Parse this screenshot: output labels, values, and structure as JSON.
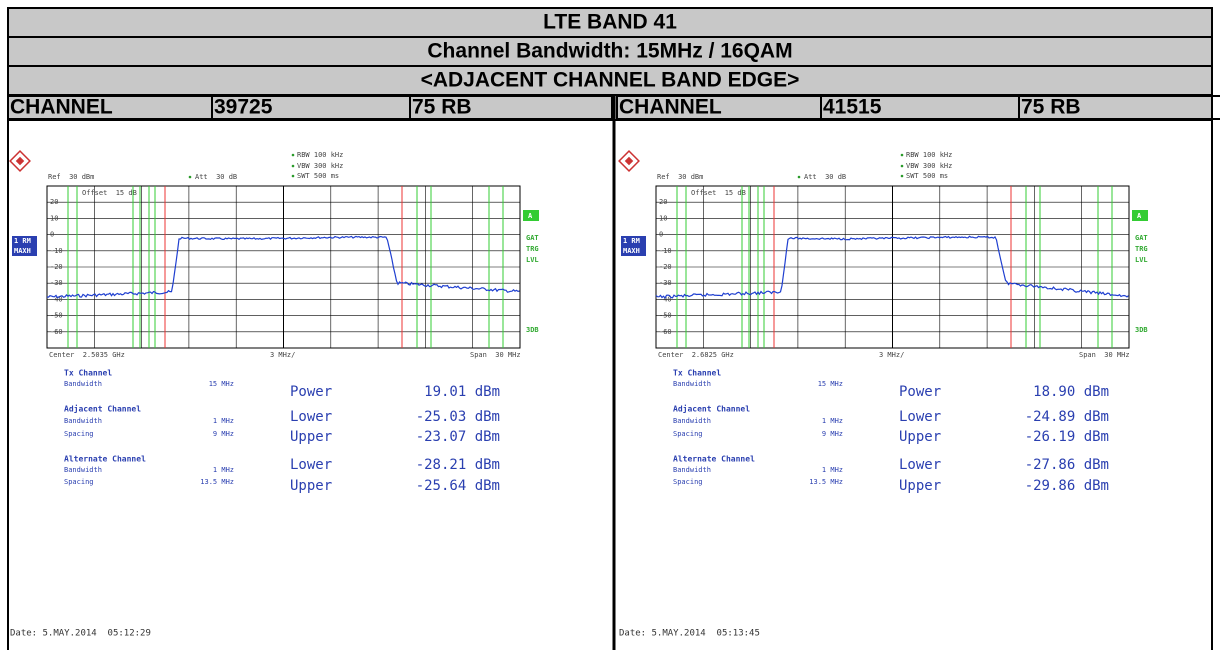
{
  "header": {
    "title": "LTE BAND 41",
    "subtitle": "Channel Bandwidth: 15MHz / 16QAM",
    "section": "<ADJACENT CHANNEL BAND EDGE>"
  },
  "panels": [
    {
      "channel_label": "CHANNEL",
      "channel": "39725",
      "rb": "75 RB",
      "analyzer": {
        "rbw": "RBW 100 kHz",
        "vbw": "VBW 300 kHz",
        "swt": "SWT 500 ms",
        "ref": "Ref  30 dBm",
        "att": "Att  30 dB",
        "offset": "Offset  15 dB",
        "trace_labels": [
          "1 RM",
          "MAXH"
        ],
        "yticks": [
          "20",
          "10",
          "0",
          "-10",
          "-20",
          "-30",
          "-40",
          "-50",
          "-60"
        ],
        "side_labels": [
          "A",
          "GAT",
          "TRG",
          "LVL",
          "3DB"
        ],
        "center": "Center  2.5035 GHz",
        "div": "3 MHz/",
        "span": "Span  30 MHz"
      },
      "results": {
        "tx_title": "Tx Channel",
        "tx_bw_label": "Bandwidth",
        "tx_bw": "15 MHz",
        "power_label": "Power",
        "power": "19.01 dBm",
        "adj_title": "Adjacent Channel",
        "adj_bw_label": "Bandwidth",
        "adj_bw": "1 MHz",
        "adj_sp_label": "Spacing",
        "adj_sp": "9 MHz",
        "adj_lower_label": "Lower",
        "adj_lower": "-25.03 dBm",
        "adj_upper_label": "Upper",
        "adj_upper": "-23.07 dBm",
        "alt_title": "Alternate Channel",
        "alt_bw_label": "Bandwidth",
        "alt_bw": "1 MHz",
        "alt_sp_label": "Spacing",
        "alt_sp": "13.5 MHz",
        "alt_lower_label": "Lower",
        "alt_lower": "-28.21 dBm",
        "alt_upper_label": "Upper",
        "alt_upper": "-25.64 dBm"
      },
      "date": "Date: 5.MAY.2014  05:12:29"
    },
    {
      "channel_label": "CHANNEL",
      "channel": "41515",
      "rb": "75 RB",
      "analyzer": {
        "rbw": "RBW 100 kHz",
        "vbw": "VBW 300 kHz",
        "swt": "SWT 500 ms",
        "ref": "Ref  30 dBm",
        "att": "Att  30 dB",
        "offset": "Offset  15 dB",
        "trace_labels": [
          "1 RM",
          "MAXH"
        ],
        "yticks": [
          "20",
          "10",
          "0",
          "-10",
          "-20",
          "-30",
          "-40",
          "-50",
          "-60"
        ],
        "side_labels": [
          "A",
          "GAT",
          "TRG",
          "LVL",
          "3DB"
        ],
        "center": "Center  2.6825 GHz",
        "div": "3 MHz/",
        "span": "Span  30 MHz"
      },
      "results": {
        "tx_title": "Tx Channel",
        "tx_bw_label": "Bandwidth",
        "tx_bw": "15 MHz",
        "power_label": "Power",
        "power": "18.90 dBm",
        "adj_title": "Adjacent Channel",
        "adj_bw_label": "Bandwidth",
        "adj_bw": "1 MHz",
        "adj_sp_label": "Spacing",
        "adj_sp": "9 MHz",
        "adj_lower_label": "Lower",
        "adj_lower": "-24.89 dBm",
        "adj_upper_label": "Upper",
        "adj_upper": "-26.19 dBm",
        "alt_title": "Alternate Channel",
        "alt_bw_label": "Bandwidth",
        "alt_bw": "1 MHz",
        "alt_sp_label": "Spacing",
        "alt_sp": "13.5 MHz",
        "alt_lower_label": "Lower",
        "alt_lower": "-27.86 dBm",
        "alt_upper_label": "Upper",
        "alt_upper": "-29.86 dBm"
      },
      "date": "Date: 5.MAY.2014  05:13:45"
    }
  ]
}
